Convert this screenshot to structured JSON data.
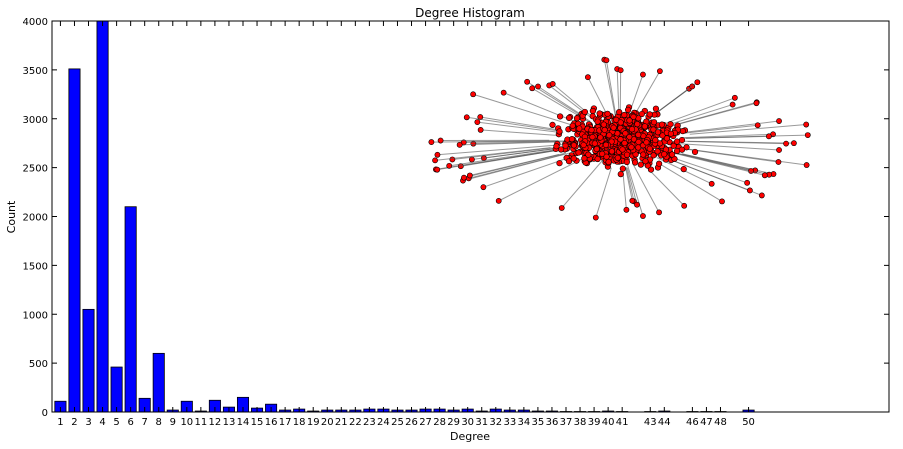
{
  "chart_data": {
    "type": "bar",
    "title": "Degree Histogram",
    "xlabel": "Degree",
    "ylabel": "Count",
    "ylim": [
      0,
      4000
    ],
    "xlim": [
      0.4,
      60
    ],
    "yticks": [
      0,
      500,
      1000,
      1500,
      2000,
      2500,
      3000,
      3500,
      4000
    ],
    "grid": false,
    "bar_color": "#0000ff",
    "categories": [
      "1",
      "2",
      "3",
      "4",
      "5",
      "6",
      "7",
      "8",
      "9",
      "10",
      "11",
      "12",
      "13",
      "14",
      "15",
      "16",
      "17",
      "18",
      "19",
      "20",
      "21",
      "22",
      "23",
      "24",
      "25",
      "26",
      "27",
      "28",
      "29",
      "30",
      "31",
      "32",
      "33",
      "34",
      "35",
      "36",
      "37",
      "38",
      "39",
      "40",
      "41",
      "43",
      "44",
      "46",
      "47",
      "48",
      "50"
    ],
    "x": [
      1,
      2,
      3,
      4,
      5,
      6,
      7,
      8,
      9,
      10,
      11,
      12,
      13,
      14,
      15,
      16,
      17,
      18,
      19,
      20,
      21,
      22,
      23,
      24,
      25,
      26,
      27,
      28,
      29,
      30,
      31,
      32,
      33,
      34,
      35,
      36,
      37,
      38,
      39,
      40,
      41,
      43,
      44,
      46,
      47,
      48,
      50
    ],
    "values": [
      110,
      3510,
      1050,
      4000,
      460,
      2100,
      140,
      600,
      20,
      110,
      10,
      120,
      50,
      150,
      40,
      80,
      20,
      30,
      10,
      20,
      20,
      20,
      30,
      30,
      20,
      20,
      30,
      30,
      20,
      30,
      10,
      30,
      20,
      20,
      10,
      10,
      5,
      5,
      5,
      10,
      5,
      5,
      10,
      5,
      5,
      5,
      20
    ],
    "inset": {
      "type": "network",
      "node_color": "#ff0000",
      "edge_color": "#555555"
    }
  }
}
